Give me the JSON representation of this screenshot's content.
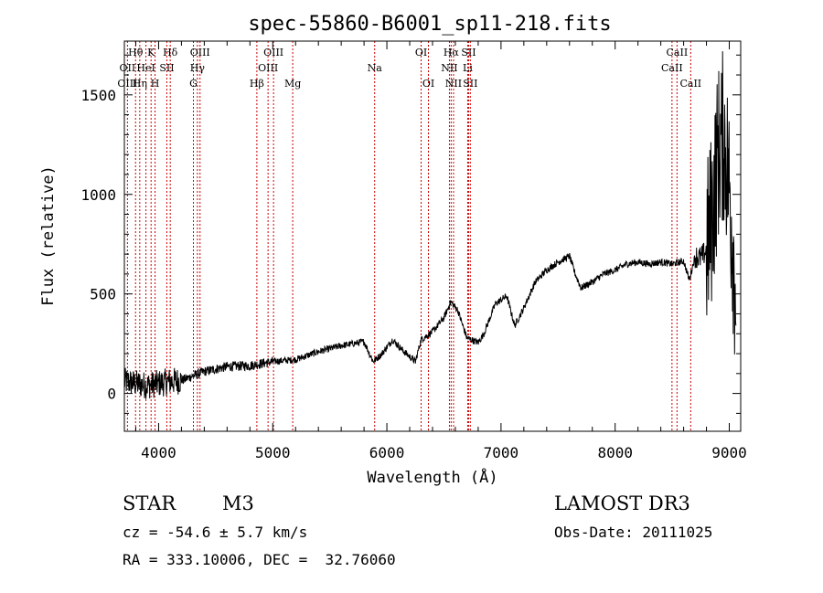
{
  "chart_data": {
    "type": "line",
    "title": "spec-55860-B6001_sp11-218.fits",
    "xlabel": "Wavelength (Å)",
    "ylabel": "Flux (relative)",
    "xlim": [
      3700,
      9100
    ],
    "ylim": [
      -190,
      1770
    ],
    "xticks": [
      4000,
      5000,
      6000,
      7000,
      8000,
      9000
    ],
    "yticks": [
      0,
      500,
      1000,
      1500
    ],
    "spectrum_anchors": {
      "x": [
        3700,
        3800,
        3900,
        4000,
        4100,
        4200,
        4400,
        4600,
        4800,
        5000,
        5200,
        5400,
        5600,
        5800,
        5880,
        5950,
        6050,
        6150,
        6250,
        6300,
        6400,
        6500,
        6560,
        6620,
        6700,
        6800,
        6850,
        6950,
        7050,
        7120,
        7200,
        7300,
        7400,
        7500,
        7600,
        7650,
        7700,
        7800,
        7900,
        8000,
        8100,
        8200,
        8300,
        8400,
        8500,
        8600,
        8650,
        8700,
        8750,
        8800,
        8850,
        8900,
        8950,
        9000,
        9060
      ],
      "y": [
        60,
        50,
        40,
        50,
        60,
        65,
        110,
        135,
        140,
        160,
        170,
        210,
        240,
        260,
        160,
        195,
        270,
        210,
        160,
        270,
        310,
        380,
        460,
        420,
        280,
        255,
        300,
        450,
        490,
        340,
        430,
        560,
        620,
        660,
        690,
        600,
        530,
        560,
        600,
        620,
        650,
        660,
        650,
        660,
        650,
        665,
        570,
        690,
        680,
        720,
        900,
        1200,
        1300,
        1050,
        500
      ]
    },
    "emission_lines": [
      {
        "label": "Hθ",
        "wavelength": 3798,
        "row": 1
      },
      {
        "label": "OII",
        "wavelength": 3727,
        "row": 2
      },
      {
        "label": "OIII",
        "wavelength": 3727,
        "row": 3
      },
      {
        "label": "K",
        "wavelength": 3934,
        "row": 1
      },
      {
        "label": "HeI",
        "wavelength": 3889,
        "row": 2
      },
      {
        "label": "Hη",
        "wavelength": 3835,
        "row": 3
      },
      {
        "label": "Hδ",
        "wavelength": 4102,
        "row": 1
      },
      {
        "label": "SII",
        "wavelength": 4072,
        "row": 2
      },
      {
        "label": "H",
        "wavelength": 3969,
        "row": 3
      },
      {
        "label": "OIII",
        "wavelength": 4363,
        "row": 1
      },
      {
        "label": "Hγ",
        "wavelength": 4340,
        "row": 2
      },
      {
        "label": "G",
        "wavelength": 4305,
        "row": 3
      },
      {
        "label": "OIII",
        "wavelength": 5007,
        "row": 1
      },
      {
        "label": "OIII",
        "wavelength": 4959,
        "row": 2
      },
      {
        "label": "Hβ",
        "wavelength": 4861,
        "row": 3
      },
      {
        "label": "Mg",
        "wavelength": 5175,
        "row": 3
      },
      {
        "label": "Na",
        "wavelength": 5893,
        "row": 2
      },
      {
        "label": "OI",
        "wavelength": 6300,
        "row": 1
      },
      {
        "label": "OI",
        "wavelength": 6364,
        "row": 3
      },
      {
        "label": "Hα",
        "wavelength": 6563,
        "row": 1
      },
      {
        "label": "SII",
        "wavelength": 6716,
        "row": 1
      },
      {
        "label": "NII",
        "wavelength": 6548,
        "row": 2
      },
      {
        "label": "Li",
        "wavelength": 6708,
        "row": 2
      },
      {
        "label": "NII",
        "wavelength": 6584,
        "row": 3
      },
      {
        "label": "SII",
        "wavelength": 6731,
        "row": 3
      },
      {
        "label": "CaII",
        "wavelength": 8542,
        "row": 1
      },
      {
        "label": "CaII",
        "wavelength": 8498,
        "row": 2
      },
      {
        "label": "CaII",
        "wavelength": 8662,
        "row": 3
      }
    ],
    "line_color": "#cc0000",
    "spectrum_color": "#000000"
  },
  "info": {
    "object_class": "STAR",
    "subclass": "M3",
    "survey": "LAMOST DR3",
    "cz": "cz = -54.6 ± 5.7 km/s",
    "obs_date": "Obs-Date: 20111025",
    "coords": "RA = 333.10006, DEC =  32.76060"
  }
}
